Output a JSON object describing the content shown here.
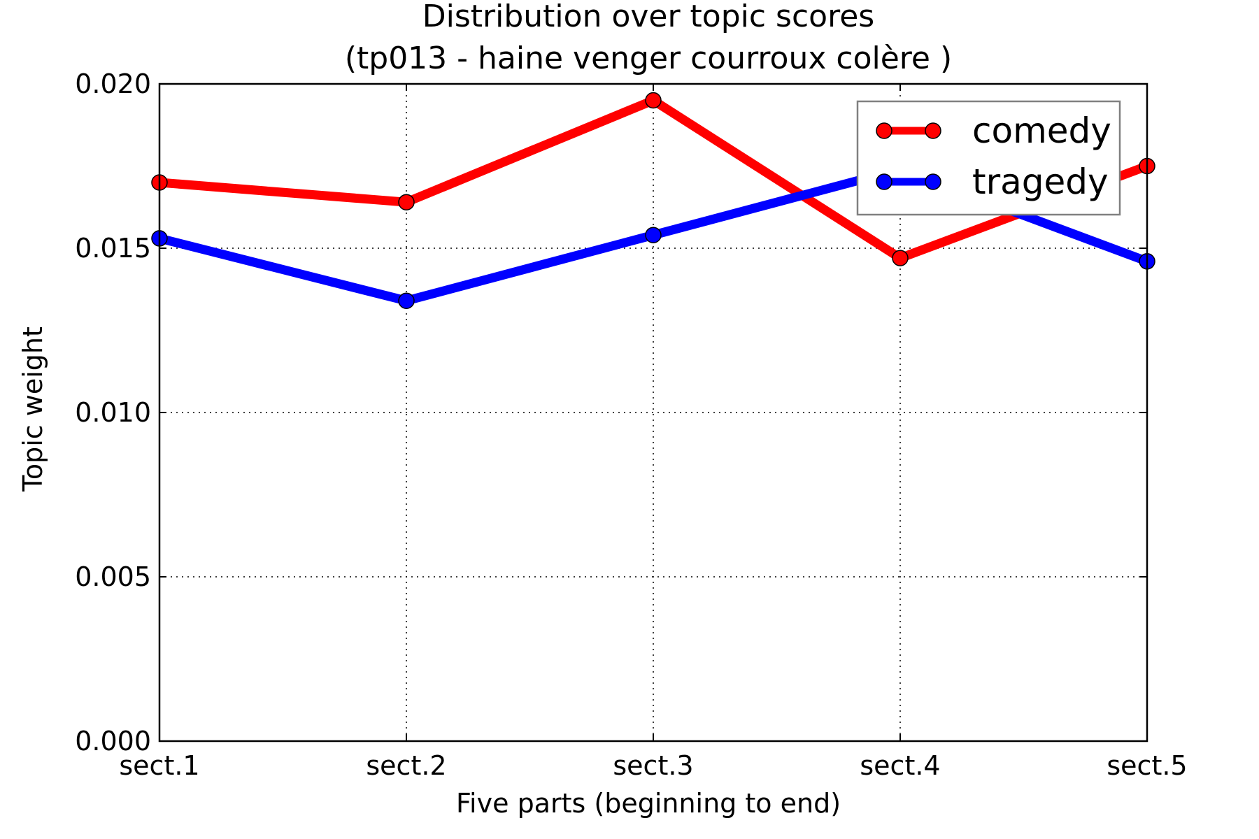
{
  "chart_data": {
    "type": "line",
    "title": "Distribution over topic scores",
    "subtitle": "(tp013 - haine venger courroux colère )",
    "xlabel": "Five parts (beginning to end)",
    "ylabel": "Topic weight",
    "categories": [
      "sect.1",
      "sect.2",
      "sect.3",
      "sect.4",
      "sect.5"
    ],
    "ylim": [
      0.0,
      0.02
    ],
    "yticks": [
      "0.000",
      "0.005",
      "0.010",
      "0.015",
      "0.020"
    ],
    "ytick_values": [
      0.0,
      0.005,
      0.01,
      0.015,
      0.02
    ],
    "grid": true,
    "legend_position": "top-right",
    "series": [
      {
        "name": "comedy",
        "color": "#ff0000",
        "values": [
          0.017,
          0.0164,
          0.0195,
          0.0147,
          0.0175
        ]
      },
      {
        "name": "tragedy",
        "color": "#0000ff",
        "values": [
          0.0153,
          0.0134,
          0.0154,
          0.0174,
          0.0146
        ]
      }
    ]
  }
}
